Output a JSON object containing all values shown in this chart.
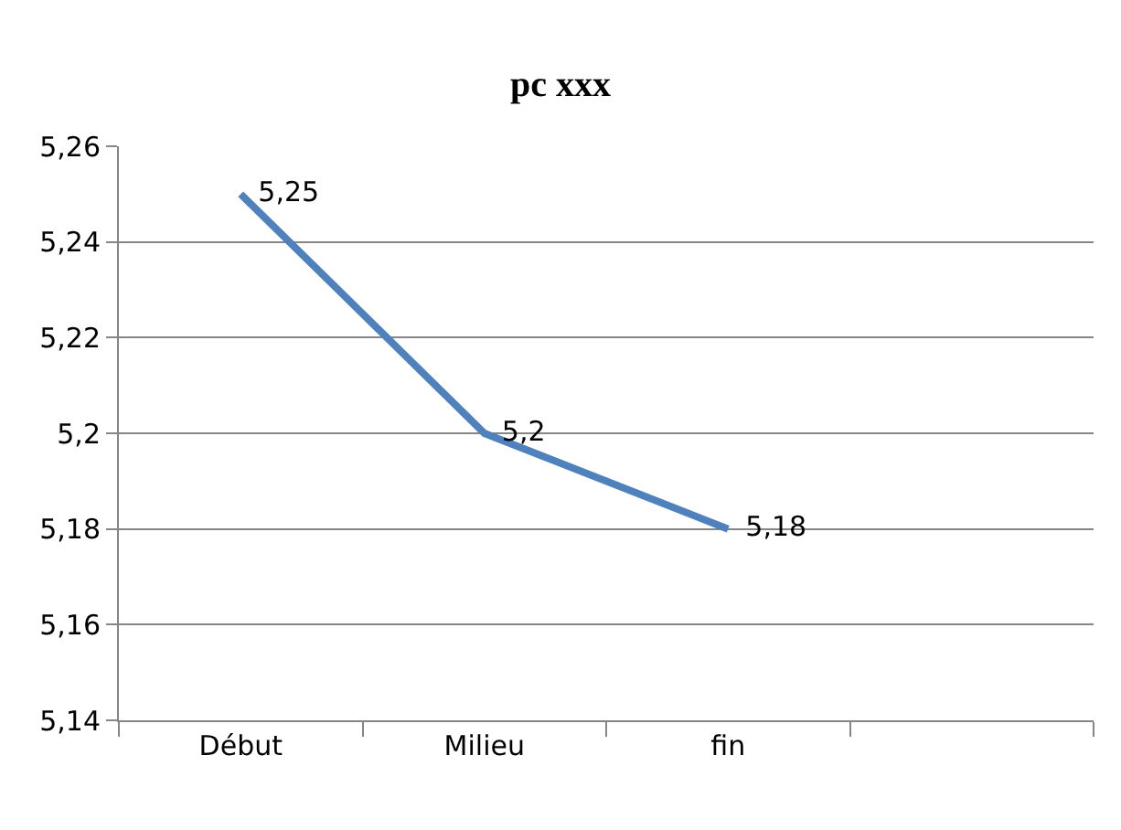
{
  "chart_data": {
    "type": "line",
    "title": "pc xxx",
    "categories": [
      "Début",
      "Milieu",
      "fin",
      null
    ],
    "series": [
      {
        "color": "#4f81bd",
        "values": [
          5.25,
          5.2,
          5.18,
          null
        ],
        "value_labels": [
          "5,25",
          "5,2",
          "5,18",
          null
        ]
      }
    ],
    "ylim": [
      5.14,
      5.26
    ],
    "yticks": [
      {
        "value": 5.14,
        "label": "5,14"
      },
      {
        "value": 5.16,
        "label": "5,16"
      },
      {
        "value": 5.18,
        "label": "5,18"
      },
      {
        "value": 5.2,
        "label": "5,2"
      },
      {
        "value": 5.22,
        "label": "5,22"
      },
      {
        "value": 5.24,
        "label": "5,24"
      },
      {
        "value": 5.26,
        "label": "5,26"
      }
    ],
    "grid": "y",
    "legend": false,
    "marker": "none",
    "line_style": "solid"
  }
}
